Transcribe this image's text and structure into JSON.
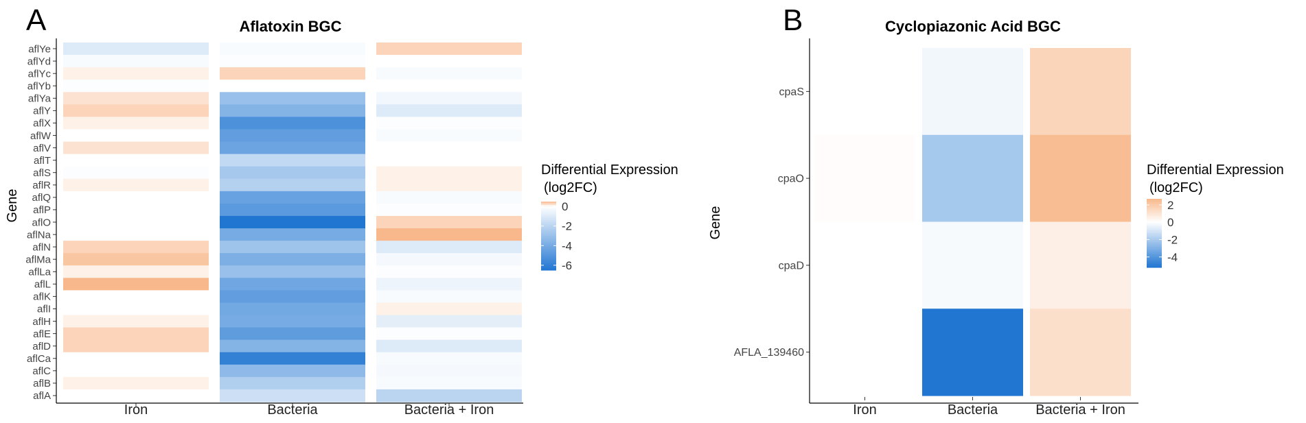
{
  "colors": {
    "low": "#2176d2",
    "mid": "#ffffff",
    "high": "#f8b88b"
  },
  "chart_data": [
    {
      "type": "heatmap",
      "panel_label": "A",
      "title": "Aflatoxin BGC",
      "xlabel": "",
      "ylabel": "Gene",
      "columns": [
        "Iron",
        "Bacteria",
        "Bacteria + Iron"
      ],
      "rows": [
        "aflYe",
        "aflYd",
        "aflYc",
        "aflYb",
        "aflYa",
        "aflY",
        "aflX",
        "aflW",
        "aflV",
        "aflT",
        "aflS",
        "aflR",
        "aflQ",
        "aflP",
        "aflO",
        "aflNa",
        "aflN",
        "aflMa",
        "aflLa",
        "aflL",
        "aflK",
        "aflI",
        "aflH",
        "aflE",
        "aflD",
        "aflCa",
        "aflC",
        "aflB",
        "aflA"
      ],
      "values": [
        [
          -1.0,
          -0.2,
          0.3
        ],
        [
          -0.2,
          -0.1,
          0.0
        ],
        [
          0.1,
          0.3,
          -0.2
        ],
        [
          -0.1,
          0.0,
          0.0
        ],
        [
          0.2,
          -3.0,
          -0.4
        ],
        [
          0.3,
          -3.6,
          -1.0
        ],
        [
          0.1,
          -5.2,
          -0.1
        ],
        [
          0.0,
          -4.6,
          -0.2
        ],
        [
          0.2,
          -4.3,
          0.0
        ],
        [
          0.0,
          -1.8,
          0.0
        ],
        [
          -0.1,
          -2.6,
          0.1
        ],
        [
          0.1,
          -2.2,
          0.1
        ],
        [
          0.0,
          -4.4,
          -0.2
        ],
        [
          0.0,
          -4.8,
          -0.1
        ],
        [
          0.0,
          -6.5,
          0.3
        ],
        [
          0.0,
          -4.0,
          0.5
        ],
        [
          0.3,
          -2.8,
          -1.0
        ],
        [
          0.4,
          -3.8,
          -0.3
        ],
        [
          0.1,
          -3.0,
          -0.1
        ],
        [
          0.6,
          -4.2,
          -0.5
        ],
        [
          0.0,
          -4.6,
          -0.2
        ],
        [
          0.0,
          -4.1,
          0.1
        ],
        [
          0.1,
          -4.0,
          -0.8
        ],
        [
          0.3,
          -4.7,
          -0.1
        ],
        [
          0.3,
          -3.6,
          -1.0
        ],
        [
          0.0,
          -6.0,
          -0.2
        ],
        [
          0.0,
          -3.3,
          -0.3
        ],
        [
          0.1,
          -2.3,
          -0.2
        ],
        [
          0.0,
          -1.5,
          -2.0
        ]
      ],
      "legend_title": [
        "Differential Expression",
        "(log2FC)"
      ],
      "legend_ticks": [
        0,
        -2,
        -4,
        -6
      ],
      "legend_tick_labels": [
        "0",
        "-2",
        "-4",
        "-6"
      ],
      "value_range": [
        -6.5,
        0.5
      ]
    },
    {
      "type": "heatmap",
      "panel_label": "B",
      "title": "Cyclopiazonic Acid BGC",
      "xlabel": "",
      "ylabel": "Gene",
      "columns": [
        "Iron",
        "Bacteria",
        "Bacteria + Iron"
      ],
      "rows": [
        "cpaS",
        "cpaO",
        "cpaD",
        "AFLA_139460"
      ],
      "values": [
        [
          0.0,
          -0.3,
          1.6
        ],
        [
          0.1,
          -2.1,
          2.5
        ],
        [
          0.0,
          -0.2,
          0.6
        ],
        [
          0.0,
          -5.2,
          1.2
        ]
      ],
      "legend_title": [
        "Differential Expression",
        "(log2FC)"
      ],
      "legend_ticks": [
        2,
        0,
        -2,
        -4
      ],
      "legend_tick_labels": [
        "2",
        "0",
        "-2",
        "-4"
      ],
      "value_range": [
        -5.2,
        2.7
      ]
    }
  ]
}
